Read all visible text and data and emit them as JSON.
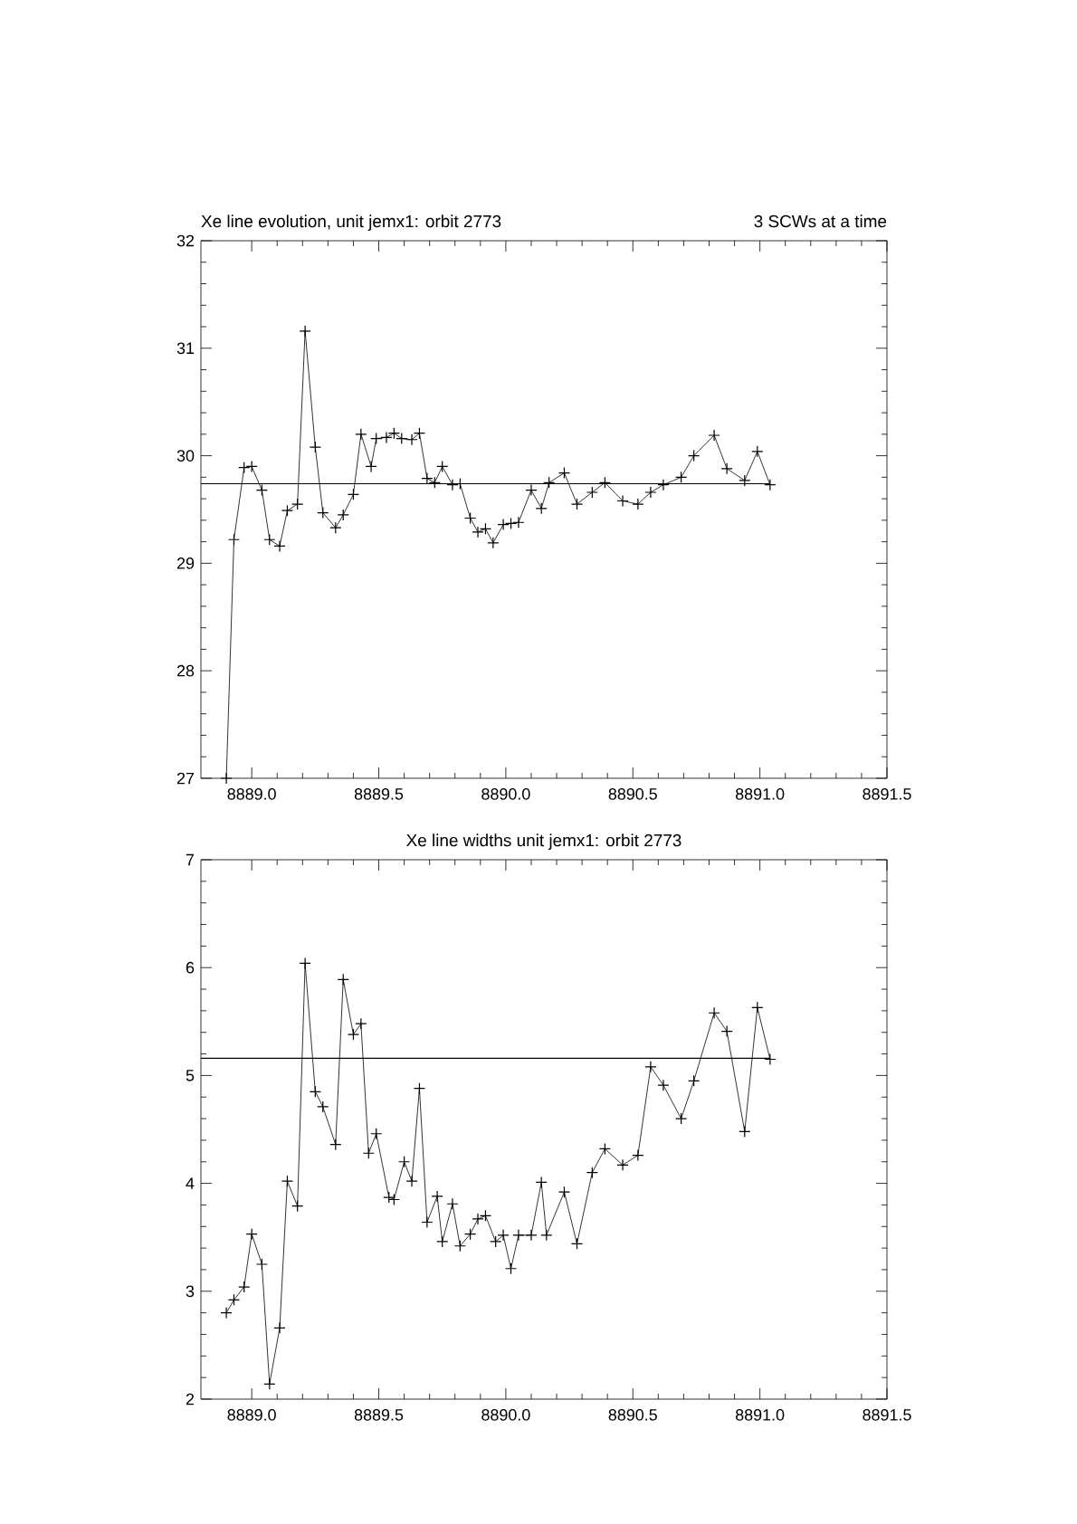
{
  "chart_data": [
    {
      "type": "line",
      "title": "Xe line evolution, unit jemx1: orbit 2773",
      "subtitle": "3 SCWs at a time",
      "marker": "cross",
      "line_style": "solid",
      "x": [
        8888.9,
        8888.93,
        8888.97,
        8889.0,
        8889.04,
        8889.07,
        8889.11,
        8889.14,
        8889.18,
        8889.21,
        8889.25,
        8889.28,
        8889.33,
        8889.36,
        8889.4,
        8889.43,
        8889.47,
        8889.49,
        8889.53,
        8889.56,
        8889.59,
        8889.63,
        8889.66,
        8889.69,
        8889.72,
        8889.75,
        8889.79,
        8889.82,
        8889.86,
        8889.89,
        8889.92,
        8889.95,
        8889.99,
        8890.02,
        8890.05,
        8890.1,
        8890.14,
        8890.17,
        8890.23,
        8890.28,
        8890.34,
        8890.39,
        8890.46,
        8890.52,
        8890.57,
        8890.62,
        8890.69,
        8890.74,
        8890.82,
        8890.87,
        8890.94,
        8890.99,
        8891.04
      ],
      "values": [
        27.0,
        29.22,
        29.89,
        29.9,
        29.68,
        29.22,
        29.16,
        29.49,
        29.55,
        31.16,
        30.08,
        29.47,
        29.33,
        29.45,
        29.64,
        30.2,
        29.9,
        30.16,
        30.17,
        30.21,
        30.16,
        30.15,
        30.21,
        29.79,
        29.75,
        29.9,
        29.73,
        29.74,
        29.42,
        29.29,
        29.32,
        29.19,
        29.36,
        29.37,
        29.38,
        29.68,
        29.51,
        29.75,
        29.84,
        29.55,
        29.66,
        29.75,
        29.58,
        29.55,
        29.66,
        29.73,
        29.8,
        30.0,
        30.19,
        29.88,
        29.77,
        30.04,
        29.73
      ],
      "ref_lines": [
        {
          "axis": "y",
          "value": 29.74
        }
      ],
      "xlim": [
        8888.8,
        8891.5
      ],
      "ylim": [
        27,
        32
      ],
      "xticks": [
        {
          "value": 8889.0,
          "label": "8889.0"
        },
        {
          "value": 8889.5,
          "label": "8889.5"
        },
        {
          "value": 8890.0,
          "label": "8890.0"
        },
        {
          "value": 8890.5,
          "label": "8890.5"
        },
        {
          "value": 8891.0,
          "label": "8891.0"
        },
        {
          "value": 8891.5,
          "label": "8891.5"
        }
      ],
      "yticks": [
        27,
        28,
        29,
        30,
        31,
        32
      ]
    },
    {
      "type": "line",
      "title": "Xe line widths unit jemx1: orbit 2773",
      "marker": "cross",
      "line_style": "solid",
      "x": [
        8888.9,
        8888.93,
        8888.97,
        8889.0,
        8889.04,
        8889.07,
        8889.11,
        8889.14,
        8889.18,
        8889.21,
        8889.25,
        8889.28,
        8889.33,
        8889.36,
        8889.4,
        8889.43,
        8889.46,
        8889.49,
        8889.54,
        8889.56,
        8889.6,
        8889.63,
        8889.66,
        8889.69,
        8889.73,
        8889.75,
        8889.79,
        8889.82,
        8889.86,
        8889.89,
        8889.92,
        8889.96,
        8889.99,
        8890.02,
        8890.05,
        8890.1,
        8890.14,
        8890.16,
        8890.23,
        8890.28,
        8890.34,
        8890.39,
        8890.46,
        8890.52,
        8890.57,
        8890.62,
        8890.69,
        8890.74,
        8890.82,
        8890.87,
        8890.94,
        8890.99,
        8891.04
      ],
      "values": [
        2.8,
        2.92,
        3.04,
        3.53,
        3.25,
        2.14,
        2.66,
        4.02,
        3.79,
        6.04,
        4.85,
        4.71,
        4.36,
        5.89,
        5.38,
        5.48,
        4.28,
        4.46,
        3.87,
        3.85,
        4.2,
        4.02,
        4.88,
        3.64,
        3.88,
        3.46,
        3.81,
        3.42,
        3.53,
        3.67,
        3.7,
        3.46,
        3.52,
        3.21,
        3.52,
        3.52,
        4.01,
        3.52,
        3.92,
        3.44,
        4.1,
        4.32,
        4.17,
        4.26,
        5.08,
        4.91,
        4.6,
        4.95,
        5.58,
        5.41,
        4.48,
        5.63,
        5.15
      ],
      "ref_lines": [
        {
          "axis": "y",
          "value": 5.16
        }
      ],
      "xlim": [
        8888.8,
        8891.5
      ],
      "ylim": [
        2,
        7
      ],
      "xticks": [
        {
          "value": 8889.0,
          "label": "8889.0"
        },
        {
          "value": 8889.5,
          "label": "8889.5"
        },
        {
          "value": 8890.0,
          "label": "8890.0"
        },
        {
          "value": 8890.5,
          "label": "8890.5"
        },
        {
          "value": 8891.0,
          "label": "8891.0"
        },
        {
          "value": 8891.5,
          "label": "8891.5"
        }
      ],
      "yticks": [
        2,
        3,
        4,
        5,
        6,
        7
      ]
    }
  ]
}
